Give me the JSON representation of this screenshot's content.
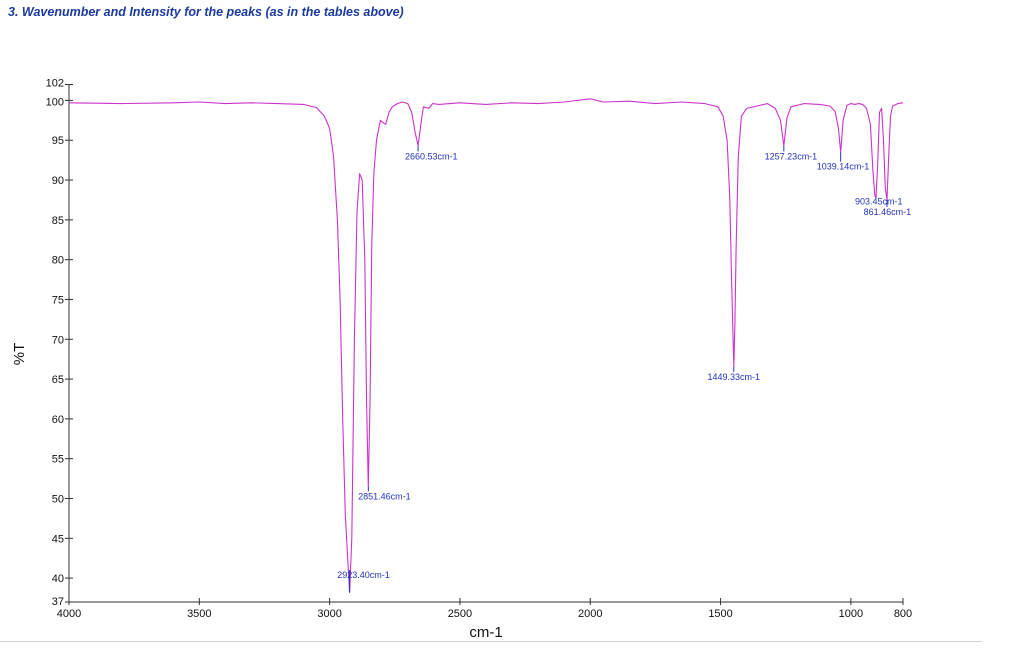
{
  "heading": "3. Wavenumber and Intensity for the peaks (as in the tables above)",
  "colors": {
    "spectrum": "#cc33cc",
    "peak_marker": "#2233bb",
    "axis": "#333333",
    "heading": "#1a3aa0"
  },
  "chart_data": {
    "type": "line",
    "title": "",
    "xlabel": "cm-1",
    "ylabel": "%T",
    "xlim": [
      4000,
      800
    ],
    "x_reversed": true,
    "ylim": [
      37,
      102
    ],
    "x_ticks": [
      4000,
      3500,
      3000,
      2500,
      2000,
      1500,
      1000,
      800
    ],
    "y_ticks": [
      37,
      40,
      45,
      50,
      55,
      60,
      65,
      70,
      75,
      80,
      85,
      90,
      95,
      100,
      102
    ],
    "grid": false,
    "series": [
      {
        "name": "",
        "points": [
          [
            4000,
            99.7
          ],
          [
            3800,
            99.6
          ],
          [
            3600,
            99.7
          ],
          [
            3500,
            99.8
          ],
          [
            3400,
            99.6
          ],
          [
            3300,
            99.7
          ],
          [
            3200,
            99.6
          ],
          [
            3100,
            99.5
          ],
          [
            3050,
            99.1
          ],
          [
            3020,
            98.0
          ],
          [
            3000,
            96.5
          ],
          [
            2985,
            93.0
          ],
          [
            2970,
            85.0
          ],
          [
            2960,
            75.0
          ],
          [
            2950,
            60.0
          ],
          [
            2940,
            48.0
          ],
          [
            2930,
            42.0
          ],
          [
            2923.4,
            38.2
          ],
          [
            2915,
            45.0
          ],
          [
            2905,
            70.0
          ],
          [
            2895,
            86.0
          ],
          [
            2885,
            90.8
          ],
          [
            2875,
            90.0
          ],
          [
            2865,
            80.0
          ],
          [
            2858,
            62.0
          ],
          [
            2851.46,
            51.5
          ],
          [
            2845,
            62.0
          ],
          [
            2838,
            82.0
          ],
          [
            2830,
            91.0
          ],
          [
            2820,
            95.0
          ],
          [
            2805,
            97.5
          ],
          [
            2795,
            97.2
          ],
          [
            2785,
            97.0
          ],
          [
            2772,
            98.5
          ],
          [
            2760,
            99.2
          ],
          [
            2740,
            99.6
          ],
          [
            2720,
            99.8
          ],
          [
            2700,
            99.6
          ],
          [
            2685,
            98.5
          ],
          [
            2672,
            96.0
          ],
          [
            2660.53,
            94.3
          ],
          [
            2650,
            97.0
          ],
          [
            2640,
            99.2
          ],
          [
            2620,
            99.0
          ],
          [
            2605,
            99.6
          ],
          [
            2580,
            99.5
          ],
          [
            2500,
            99.7
          ],
          [
            2400,
            99.5
          ],
          [
            2300,
            99.7
          ],
          [
            2200,
            99.6
          ],
          [
            2100,
            99.8
          ],
          [
            2000,
            100.2
          ],
          [
            1950,
            99.8
          ],
          [
            1850,
            99.9
          ],
          [
            1750,
            99.6
          ],
          [
            1650,
            99.8
          ],
          [
            1560,
            99.6
          ],
          [
            1510,
            99.2
          ],
          [
            1490,
            98.0
          ],
          [
            1475,
            95.0
          ],
          [
            1465,
            88.0
          ],
          [
            1458,
            78.0
          ],
          [
            1452,
            70.0
          ],
          [
            1449.33,
            66.5
          ],
          [
            1445,
            72.0
          ],
          [
            1440,
            82.0
          ],
          [
            1432,
            93.0
          ],
          [
            1420,
            98.0
          ],
          [
            1400,
            99.0
          ],
          [
            1360,
            99.3
          ],
          [
            1320,
            99.6
          ],
          [
            1290,
            99.0
          ],
          [
            1270,
            97.5
          ],
          [
            1257.23,
            94.3
          ],
          [
            1245,
            97.8
          ],
          [
            1230,
            99.2
          ],
          [
            1180,
            99.6
          ],
          [
            1120,
            99.5
          ],
          [
            1080,
            99.3
          ],
          [
            1060,
            98.6
          ],
          [
            1048,
            96.5
          ],
          [
            1039.14,
            93.5
          ],
          [
            1030,
            97.5
          ],
          [
            1015,
            99.4
          ],
          [
            1000,
            99.6
          ],
          [
            985,
            99.5
          ],
          [
            970,
            99.6
          ],
          [
            955,
            99.5
          ],
          [
            940,
            99.0
          ],
          [
            925,
            97.0
          ],
          [
            915,
            91.0
          ],
          [
            908,
            88.0
          ],
          [
            903.45,
            87.8
          ],
          [
            897,
            92.0
          ],
          [
            890,
            98.5
          ],
          [
            882,
            99.0
          ],
          [
            875,
            95.0
          ],
          [
            868,
            89.0
          ],
          [
            861.46,
            87.5
          ],
          [
            855,
            93.0
          ],
          [
            848,
            98.0
          ],
          [
            840,
            99.3
          ],
          [
            820,
            99.6
          ],
          [
            800,
            99.7
          ]
        ]
      }
    ],
    "peaks": [
      {
        "x": 2923.4,
        "y": 38.2,
        "label": "2923.40cm-1",
        "label_x": 2870,
        "label_y": 40.0
      },
      {
        "x": 2851.46,
        "y": 51.5,
        "label": "2851.46cm-1",
        "label_x": 2790,
        "label_y": 49.9
      },
      {
        "x": 2660.53,
        "y": 94.3,
        "label": "2660.53cm-1",
        "label_x": 2610,
        "label_y": 92.6
      },
      {
        "x": 1449.33,
        "y": 66.5,
        "label": "1449.33cm-1",
        "label_x": 1449.33,
        "label_y": 64.9
      },
      {
        "x": 1257.23,
        "y": 94.3,
        "label": "1257.23cm-1",
        "label_x": 1230,
        "label_y": 92.6
      },
      {
        "x": 1039.14,
        "y": 93.5,
        "label": "1039.14cm-1",
        "label_x": 1030,
        "label_y": 91.3
      },
      {
        "x": 903.45,
        "y": 87.8,
        "label": "903.45cm-1",
        "label_x": 893,
        "label_y": 86.9
      },
      {
        "x": 861.46,
        "y": 87.5,
        "label": "861.46cm-1",
        "label_x": 860,
        "label_y": 85.6
      }
    ]
  }
}
